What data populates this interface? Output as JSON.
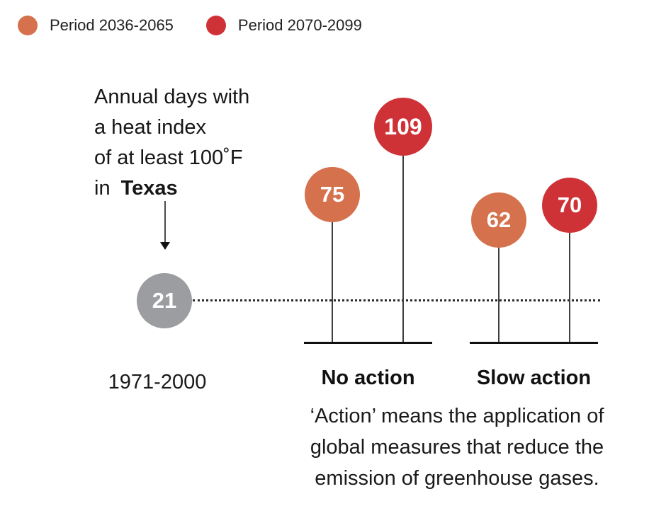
{
  "legend": {
    "items": [
      {
        "label": "Period 2036-2065",
        "color": "#d5714c"
      },
      {
        "label": "Period 2070-2099",
        "color": "#ce3236"
      }
    ]
  },
  "heading": {
    "line1": "Annual days with",
    "line2": "a heat index",
    "line3": "of at least 100˚F",
    "line4_prefix": "in",
    "line4_bold": "Texas"
  },
  "baseline_point": {
    "value": "21",
    "label": "1971-2000",
    "color": "#9b9da1"
  },
  "groups": [
    {
      "label": "No action",
      "points": [
        {
          "value": "75",
          "period": "2036-2065",
          "color": "#d5714c"
        },
        {
          "value": "109",
          "period": "2070-2099",
          "color": "#ce3236"
        }
      ]
    },
    {
      "label": "Slow action",
      "points": [
        {
          "value": "62",
          "period": "2036-2065",
          "color": "#d5714c"
        },
        {
          "value": "70",
          "period": "2070-2099",
          "color": "#ce3236"
        }
      ]
    }
  ],
  "caption": {
    "line1": "‘Action’ means the application of",
    "line2": "global measures that reduce the",
    "line3": "emission of greenhouse gases."
  },
  "chart_data": {
    "type": "bar",
    "variant": "lollipop",
    "title": "Annual days with a heat index of at least 100˚F in Texas",
    "categories": [
      "No action",
      "Slow action"
    ],
    "series": [
      {
        "name": "Period 2036-2065",
        "color": "#d5714c",
        "values": [
          75,
          62
        ]
      },
      {
        "name": "Period 2070-2099",
        "color": "#ce3236",
        "values": [
          109,
          70
        ]
      }
    ],
    "baseline": {
      "label": "1971-2000",
      "value": 21,
      "color": "#9b9da1"
    },
    "legend_position": "top-left",
    "grid": false,
    "annotation": "‘Action’ means the application of global measures that reduce the emission of greenhouse gases."
  }
}
